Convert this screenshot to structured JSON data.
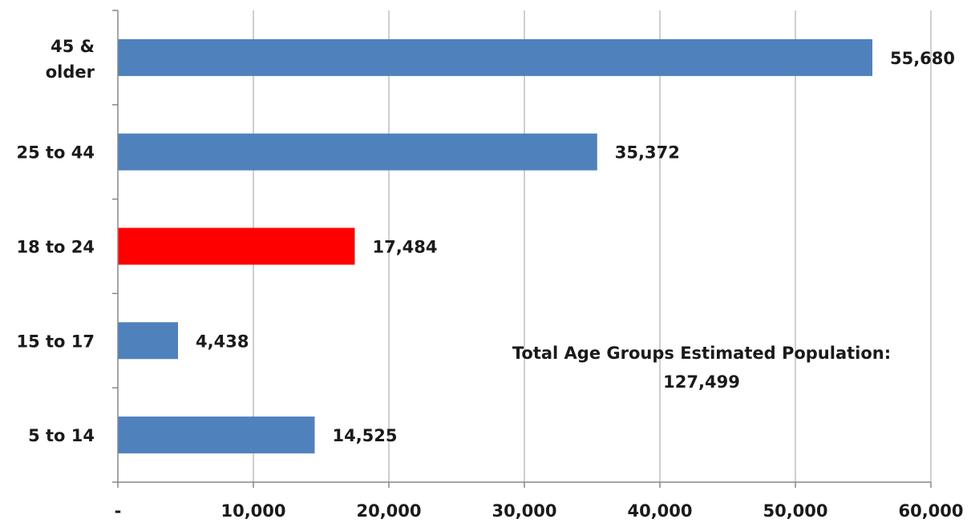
{
  "chart_data": {
    "type": "bar",
    "orientation": "horizontal",
    "title": "",
    "xlabel": "",
    "ylabel": "",
    "categories": [
      "5 to 14",
      "15 to 17",
      "18 to 24",
      "25 to 44",
      "45 & older"
    ],
    "values": [
      14525,
      4438,
      17484,
      35372,
      55680
    ],
    "value_labels": [
      "14,525",
      "4,438",
      "17,484",
      "35,372",
      "55,680"
    ],
    "bar_colors": [
      "#4f81bd",
      "#4f81bd",
      "#ff0000",
      "#4f81bd",
      "#4f81bd"
    ],
    "xlim": [
      0,
      60000
    ],
    "x_ticks": [
      0,
      10000,
      20000,
      30000,
      40000,
      50000,
      60000
    ],
    "x_tick_labels": [
      "-",
      "10,000",
      "20,000",
      "30,000",
      "40,000",
      "50,000",
      "60,000"
    ],
    "grid": "vertical",
    "legend": "none",
    "annotation": {
      "line1": "Total Age Groups Estimated Population:",
      "line2": "127,499"
    }
  }
}
